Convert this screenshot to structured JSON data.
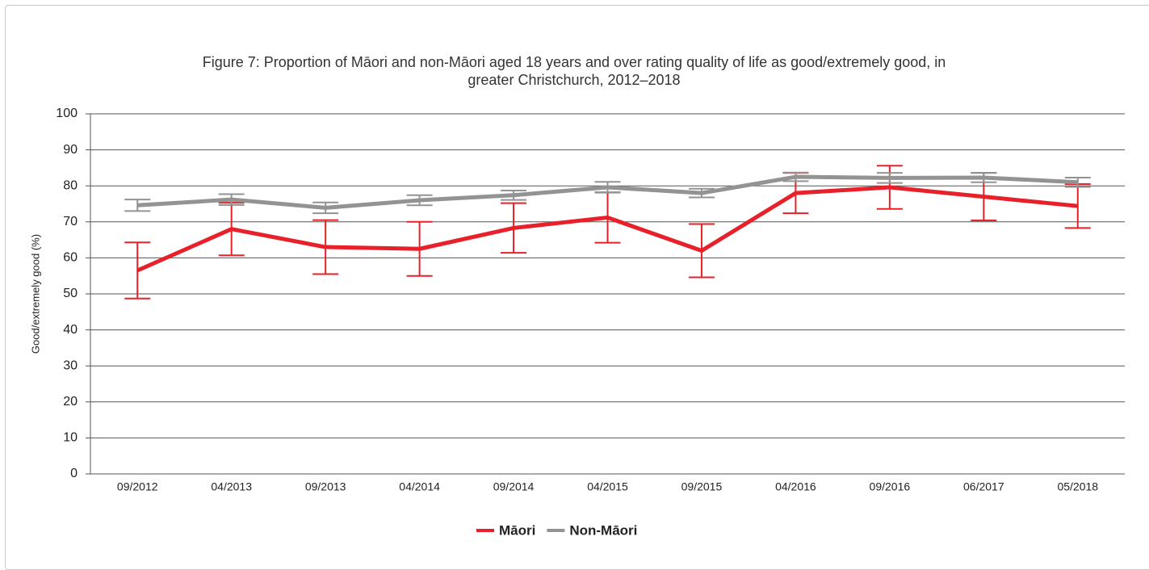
{
  "chart_data": {
    "type": "line",
    "title": "Figure 7: Proportion of Māori and non-Māori aged 18 years and over rating quality of life as good/extremely good, in greater Christchurch, 2012–2018",
    "y_label": "Good/extremely good (%)",
    "categories": [
      "09/2012",
      "04/2013",
      "09/2013",
      "04/2014",
      "09/2014",
      "04/2015",
      "09/2015",
      "04/2016",
      "09/2016",
      "06/2017",
      "05/2018"
    ],
    "series": [
      {
        "name": "Māori",
        "color": "#e8202a",
        "values": [
          56.5,
          68,
          63,
          62.5,
          68.3,
          71.2,
          62,
          78,
          79.6,
          77,
          74.4
        ],
        "errors": [
          7.8,
          7.3,
          7.5,
          7.5,
          6.9,
          7,
          7.4,
          5.6,
          6,
          6.6,
          6.1
        ]
      },
      {
        "name": "Non-Māori",
        "color": "#939393",
        "values": [
          74.6,
          76.2,
          73.9,
          76,
          77.4,
          79.6,
          78,
          82.5,
          82.2,
          82.3,
          81
        ],
        "errors": [
          1.6,
          1.5,
          1.5,
          1.4,
          1.3,
          1.5,
          1.2,
          1.2,
          1.4,
          1.3,
          1.3
        ]
      }
    ],
    "ylim": [
      0,
      100
    ],
    "yticks": [
      0,
      10,
      20,
      30,
      40,
      50,
      60,
      70,
      80,
      90,
      100
    ],
    "grid": true,
    "legend": "bottom"
  }
}
